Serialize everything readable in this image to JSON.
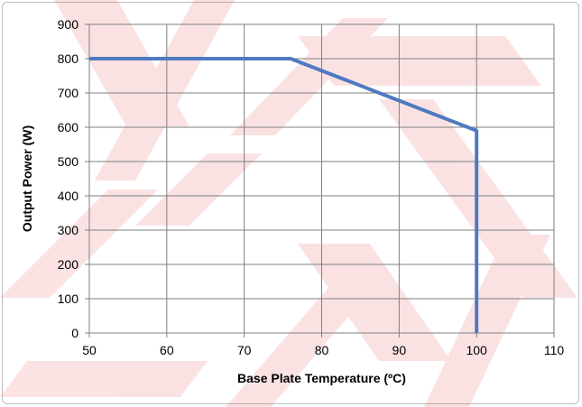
{
  "chart_data": {
    "type": "line",
    "title": "",
    "xlabel": "Base Plate Temperature (ºC)",
    "ylabel": "Output Power (W)",
    "xlim": [
      50,
      110
    ],
    "ylim": [
      0,
      900
    ],
    "xticks": [
      50,
      60,
      70,
      80,
      90,
      100,
      110
    ],
    "yticks": [
      0,
      100,
      200,
      300,
      400,
      500,
      600,
      700,
      800,
      900
    ],
    "x_tick_labels": [
      "50",
      "60",
      "70",
      "80",
      "90",
      "100",
      "110"
    ],
    "y_tick_labels": [
      "0",
      "100",
      "200",
      "300",
      "400",
      "500",
      "600",
      "700",
      "800",
      "900"
    ],
    "grid": true,
    "legend": "none",
    "series": [
      {
        "color": "#4f7ac2",
        "points": [
          {
            "x": 50,
            "y": 800
          },
          {
            "x": 76,
            "y": 800
          },
          {
            "x": 100,
            "y": 590
          },
          {
            "x": 100,
            "y": 0
          }
        ]
      }
    ]
  },
  "colors": {
    "line": "#4f7ac2",
    "grid": "#7f7f7f",
    "watermark": "#d9000d"
  }
}
